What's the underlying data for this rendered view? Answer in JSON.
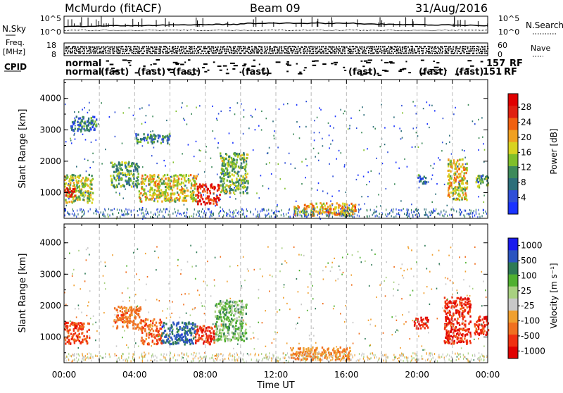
{
  "header": {
    "station": "McMurdo (fitACF)",
    "beam": "Beam 09",
    "date": "31/Aug/2016"
  },
  "left_labels": {
    "nsky": "N.Sky",
    "freq_1": "Freq.",
    "freq_2": "[MHz]",
    "cpid": "CPID"
  },
  "right_labels": {
    "nsearch": "N.Search",
    "nave": "Nave",
    "cpid_tail_1": "RF",
    "cpid_tail_2": "151",
    "cpid_tail_3": "RF"
  },
  "noise_axis": {
    "left_ticks": [
      "10^5",
      "10^0"
    ],
    "right_ticks": [
      "10^5",
      "10^0"
    ]
  },
  "freq_axis": {
    "left_ticks": [
      "18",
      "8"
    ],
    "right_ticks": [
      "60",
      "0"
    ]
  },
  "cpid_rows": {
    "row1": "normal",
    "row2": "normal",
    "fragments": [
      "(fast)",
      "(fast)",
      "(fast)",
      "(fast)",
      "(fast)",
      "(fast)",
      "(fast)"
    ],
    "tail_number": "157"
  },
  "colors": {
    "power_scale": [
      "#1a33ff",
      "#2f4fd8",
      "#2c6e7a",
      "#3d8a5a",
      "#7fbf2a",
      "#d8d320",
      "#f0a020",
      "#f06010",
      "#e02010",
      "#e00000"
    ],
    "velocity_scale": [
      "#e00000",
      "#f03010",
      "#f07020",
      "#f0a030",
      "#c8c8c8",
      "#a8d080",
      "#50b030",
      "#2e7a55",
      "#2c55c0",
      "#1a1aee"
    ]
  },
  "chart_data": [
    {
      "type": "heatmap",
      "panel": "power",
      "ylabel": "Slant Range [km]",
      "ylim": [
        180,
        4600
      ],
      "y_ticks": [
        "1000",
        "2000",
        "3000",
        "4000"
      ],
      "colorbar_label": "Power [dB]",
      "colorbar_ticks": [
        "28",
        "24",
        "20",
        "16",
        "12",
        "8",
        "4"
      ],
      "x_range_hours": [
        0,
        24
      ],
      "echo_regions": [
        {
          "t_start": 0.0,
          "t_end": 1.6,
          "r_min": 700,
          "r_max": 1600,
          "value": 16
        },
        {
          "t_start": 0.0,
          "t_end": 0.6,
          "r_min": 900,
          "r_max": 1200,
          "value": 28
        },
        {
          "t_start": 0.3,
          "t_end": 1.8,
          "r_min": 3000,
          "r_max": 3450,
          "value": 8
        },
        {
          "t_start": 2.6,
          "t_end": 4.2,
          "r_min": 1200,
          "r_max": 2000,
          "value": 12
        },
        {
          "t_start": 4.2,
          "t_end": 7.5,
          "r_min": 750,
          "r_max": 1600,
          "value": 18
        },
        {
          "t_start": 7.5,
          "t_end": 8.8,
          "r_min": 650,
          "r_max": 1300,
          "value": 28
        },
        {
          "t_start": 8.8,
          "t_end": 10.4,
          "r_min": 1000,
          "r_max": 2300,
          "value": 14
        },
        {
          "t_start": 4.0,
          "t_end": 6.0,
          "r_min": 2600,
          "r_max": 2900,
          "value": 10
        },
        {
          "t_start": 13.0,
          "t_end": 16.5,
          "r_min": 300,
          "r_max": 700,
          "value": 20
        },
        {
          "t_start": 20.0,
          "t_end": 20.5,
          "r_min": 1300,
          "r_max": 1600,
          "value": 8
        },
        {
          "t_start": 21.7,
          "t_end": 22.8,
          "r_min": 800,
          "r_max": 2100,
          "value": 18
        },
        {
          "t_start": 23.3,
          "t_end": 24.0,
          "r_min": 1200,
          "r_max": 1600,
          "value": 12
        }
      ]
    },
    {
      "type": "heatmap",
      "panel": "velocity",
      "ylabel": "Slant Range [km]",
      "xlabel": "Time UT",
      "ylim": [
        180,
        4600
      ],
      "y_ticks": [
        "1000",
        "2000",
        "3000",
        "4000"
      ],
      "x_ticks": [
        "00:00",
        "04:00",
        "08:00",
        "12:00",
        "16:00",
        "20:00",
        "00:00"
      ],
      "colorbar_label": "Velocity [m s⁻¹]",
      "colorbar_ticks": [
        "1000",
        "500",
        "100",
        "25",
        "-25",
        "-100",
        "-500",
        "-1000"
      ],
      "x_range_hours": [
        0,
        24
      ],
      "echo_regions": [
        {
          "t_start": 0.0,
          "t_end": 1.4,
          "r_min": 800,
          "r_max": 1500,
          "value": -300
        },
        {
          "t_start": 2.8,
          "t_end": 4.3,
          "r_min": 1300,
          "r_max": 2000,
          "value": -150
        },
        {
          "t_start": 4.3,
          "t_end": 5.5,
          "r_min": 800,
          "r_max": 1600,
          "value": -200
        },
        {
          "t_start": 5.5,
          "t_end": 7.4,
          "r_min": 800,
          "r_max": 1500,
          "value": 500
        },
        {
          "t_start": 7.4,
          "t_end": 8.5,
          "r_min": 800,
          "r_max": 1400,
          "value": -400
        },
        {
          "t_start": 8.5,
          "t_end": 10.3,
          "r_min": 900,
          "r_max": 2200,
          "value": 60
        },
        {
          "t_start": 12.8,
          "t_end": 16.2,
          "r_min": 300,
          "r_max": 700,
          "value": -100
        },
        {
          "t_start": 19.8,
          "t_end": 20.6,
          "r_min": 1300,
          "r_max": 1700,
          "value": -400
        },
        {
          "t_start": 21.5,
          "t_end": 23.0,
          "r_min": 800,
          "r_max": 2300,
          "value": -400
        },
        {
          "t_start": 23.2,
          "t_end": 24.0,
          "r_min": 1100,
          "r_max": 1700,
          "value": -400
        }
      ]
    }
  ]
}
